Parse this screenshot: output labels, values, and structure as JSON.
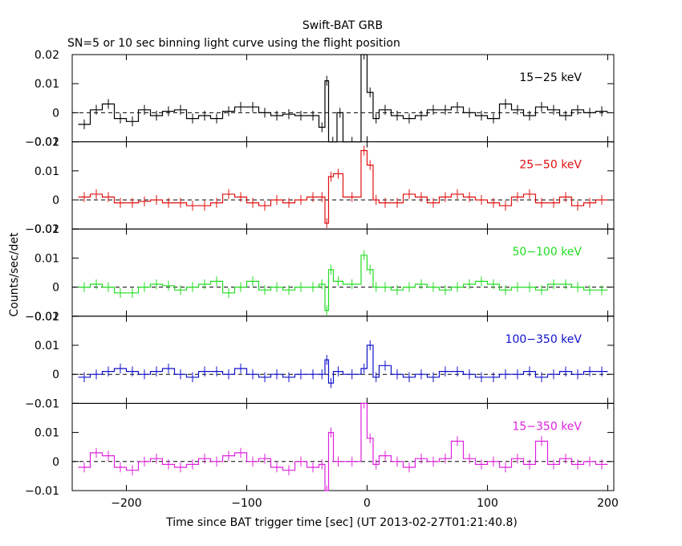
{
  "chart_data": {
    "type": "line",
    "title": "Swift-BAT GRB",
    "subtitle": "SN=5 or 10 sec binning light curve using the flight position",
    "xlabel": "Time since BAT trigger time [sec] (UT 2013-02-27T01:21:40.8)",
    "ylabel": "Counts/sec/det",
    "xlim": [
      -245,
      205
    ],
    "ylim": [
      -0.01,
      0.02
    ],
    "xticks": [
      -200,
      -100,
      0,
      100,
      200
    ],
    "xtick_labels": [
      "−200",
      "−100",
      "0",
      "100",
      "200"
    ],
    "ytick_labels": [
      "0.02",
      "0.01",
      "0",
      "−0.01"
    ],
    "bottom_ytick_labels": [
      "0.01",
      "0",
      "−0.01"
    ],
    "series": [
      {
        "name": "15−25 keV",
        "color": "#000000",
        "x": [
          -240,
          -230,
          -220,
          -210,
          -200,
          -190,
          -180,
          -170,
          -160,
          -150,
          -140,
          -130,
          -120,
          -110,
          -100,
          -90,
          -80,
          -70,
          -60,
          -50,
          -40,
          -35,
          -32,
          -25,
          -20,
          -5,
          0,
          5,
          10,
          20,
          30,
          40,
          50,
          60,
          70,
          80,
          90,
          100,
          110,
          120,
          130,
          140,
          150,
          160,
          170,
          180,
          190
        ],
        "y": [
          -0.004,
          0.001,
          0.003,
          -0.002,
          -0.003,
          0.001,
          -0.001,
          0.0005,
          0.001,
          -0.002,
          -0.001,
          -0.002,
          0.0005,
          0.002,
          0.002,
          0,
          -0.001,
          -0.0005,
          -0.001,
          -0.001,
          -0.005,
          0.011,
          -0.01,
          0,
          -0.01,
          0.02,
          0.007,
          -0.002,
          0.001,
          -0.001,
          -0.002,
          -0.001,
          0.001,
          0.001,
          0.002,
          0,
          -0.001,
          -0.002,
          0.003,
          0.001,
          -0.001,
          0.002,
          0.001,
          -0.001,
          0.001,
          0,
          0.0005
        ]
      },
      {
        "name": "25−50 keV",
        "color": "#e01010",
        "x": [
          -240,
          -230,
          -220,
          -210,
          -200,
          -190,
          -180,
          -170,
          -160,
          -150,
          -140,
          -130,
          -120,
          -110,
          -100,
          -90,
          -80,
          -70,
          -60,
          -50,
          -40,
          -35,
          -32,
          -28,
          -20,
          -5,
          0,
          5,
          10,
          20,
          30,
          40,
          50,
          60,
          70,
          80,
          90,
          100,
          110,
          120,
          130,
          140,
          150,
          160,
          170,
          180,
          190
        ],
        "y": [
          0.001,
          0.002,
          0.001,
          -0.001,
          -0.001,
          -0.0005,
          0,
          -0.001,
          -0.001,
          -0.002,
          -0.002,
          -0.001,
          0.002,
          0.001,
          -0.001,
          -0.002,
          0,
          -0.001,
          0,
          0.001,
          0.001,
          -0.008,
          0.008,
          0.009,
          0.001,
          0.017,
          0.012,
          0,
          -0.001,
          -0.001,
          0.002,
          0.001,
          -0.001,
          0.001,
          0.002,
          0.001,
          0,
          -0.001,
          -0.002,
          0.001,
          0.002,
          -0.001,
          -0.001,
          0.001,
          -0.002,
          -0.001,
          0
        ]
      },
      {
        "name": "50−100 keV",
        "color": "#22dd22",
        "x": [
          -240,
          -230,
          -220,
          -210,
          -200,
          -190,
          -180,
          -170,
          -160,
          -150,
          -140,
          -130,
          -120,
          -110,
          -100,
          -90,
          -80,
          -70,
          -60,
          -50,
          -40,
          -35,
          -32,
          -28,
          -20,
          -5,
          0,
          5,
          10,
          20,
          30,
          40,
          50,
          60,
          70,
          80,
          90,
          100,
          110,
          120,
          130,
          140,
          150,
          160,
          170,
          180,
          190
        ],
        "y": [
          0,
          0.001,
          0,
          -0.002,
          -0.002,
          0,
          0.001,
          0.0005,
          -0.001,
          0,
          0.001,
          0.002,
          -0.002,
          0,
          0.002,
          -0.001,
          0,
          -0.001,
          0,
          0,
          0.001,
          -0.008,
          0.006,
          0.002,
          0.001,
          0.011,
          0.006,
          0,
          0,
          -0.001,
          0,
          0.001,
          0,
          -0.001,
          0,
          0.001,
          0.002,
          0.001,
          -0.001,
          0,
          0,
          -0.001,
          0.001,
          0.001,
          0,
          -0.001,
          -0.001
        ]
      },
      {
        "name": "100−350 keV",
        "color": "#1010cc",
        "x": [
          -240,
          -230,
          -220,
          -210,
          -200,
          -190,
          -180,
          -170,
          -160,
          -150,
          -140,
          -130,
          -120,
          -110,
          -100,
          -90,
          -80,
          -70,
          -60,
          -50,
          -40,
          -35,
          -32,
          -28,
          -20,
          -5,
          0,
          5,
          10,
          20,
          30,
          40,
          50,
          60,
          70,
          80,
          90,
          100,
          110,
          120,
          130,
          140,
          150,
          160,
          170,
          180,
          190
        ],
        "y": [
          -0.001,
          0,
          0.001,
          0.002,
          0.001,
          0,
          0.001,
          0.002,
          0,
          -0.001,
          0.001,
          0.001,
          0,
          0.002,
          0,
          -0.001,
          0,
          -0.001,
          0,
          0,
          0,
          0.005,
          -0.003,
          0.001,
          0,
          0.002,
          0.01,
          -0.001,
          0.003,
          0,
          -0.001,
          0,
          -0.001,
          0.001,
          0.001,
          0,
          -0.001,
          -0.001,
          0,
          0,
          0.001,
          -0.001,
          0,
          0.001,
          0,
          0.001,
          0.001
        ]
      },
      {
        "name": "15−350 keV",
        "color": "#dd22dd",
        "x": [
          -240,
          -230,
          -220,
          -210,
          -200,
          -190,
          -180,
          -170,
          -160,
          -150,
          -140,
          -130,
          -120,
          -110,
          -100,
          -90,
          -80,
          -70,
          -60,
          -50,
          -40,
          -35,
          -32,
          -28,
          -20,
          -5,
          0,
          5,
          10,
          20,
          30,
          40,
          50,
          60,
          70,
          80,
          90,
          100,
          110,
          120,
          130,
          140,
          150,
          160,
          170,
          180,
          190
        ],
        "y": [
          -0.002,
          0.003,
          0.002,
          -0.002,
          -0.003,
          0,
          0.001,
          -0.001,
          -0.002,
          -0.001,
          0.001,
          0,
          0.002,
          0.003,
          0,
          0.001,
          -0.002,
          -0.003,
          0,
          -0.002,
          -0.001,
          -0.01,
          0.01,
          0,
          0,
          0.02,
          0.008,
          -0.001,
          0.002,
          0,
          -0.002,
          0.001,
          0,
          0.001,
          0.007,
          0.001,
          -0.001,
          0,
          -0.002,
          0.001,
          -0.001,
          0.007,
          -0.001,
          0.001,
          -0.001,
          0,
          -0.001
        ]
      }
    ]
  }
}
